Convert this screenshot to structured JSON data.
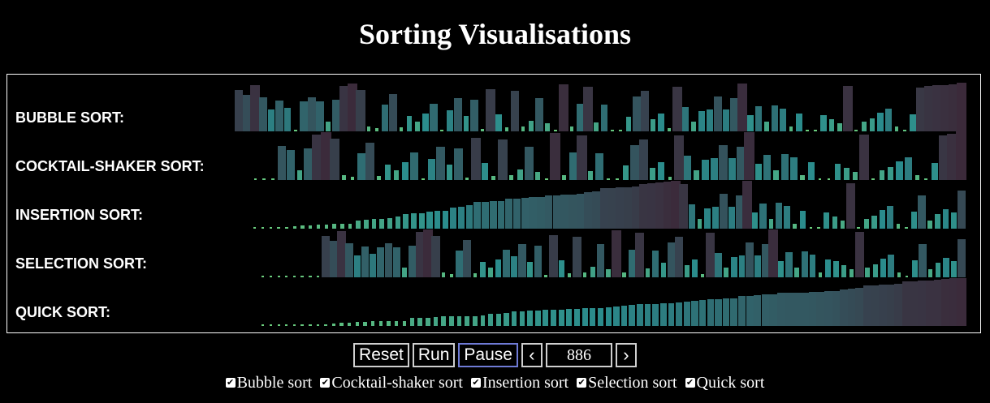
{
  "title": "Sorting Visualisations",
  "rows": [
    {
      "label": "BUBBLE SORT:"
    },
    {
      "label": "COCKTAIL-SHAKER SORT:"
    },
    {
      "label": "INSERTION SORT:"
    },
    {
      "label": "SELECTION SORT:"
    },
    {
      "label": "QUICK SORT:"
    }
  ],
  "controls": {
    "reset": "Reset",
    "run": "Run",
    "pause": "Pause",
    "prev": "‹",
    "next": "›",
    "step": "886"
  },
  "toggles": [
    {
      "label": "Bubble sort",
      "checked": true
    },
    {
      "label": "Cocktail-shaker sort",
      "checked": true
    },
    {
      "label": "Insertion sort",
      "checked": true
    },
    {
      "label": "Selection sort",
      "checked": true
    },
    {
      "label": "Quick sort",
      "checked": true
    }
  ],
  "colors": {
    "low": "#6fd17c",
    "mid": "#2a8b8c",
    "high": "#3b2a3a"
  }
}
